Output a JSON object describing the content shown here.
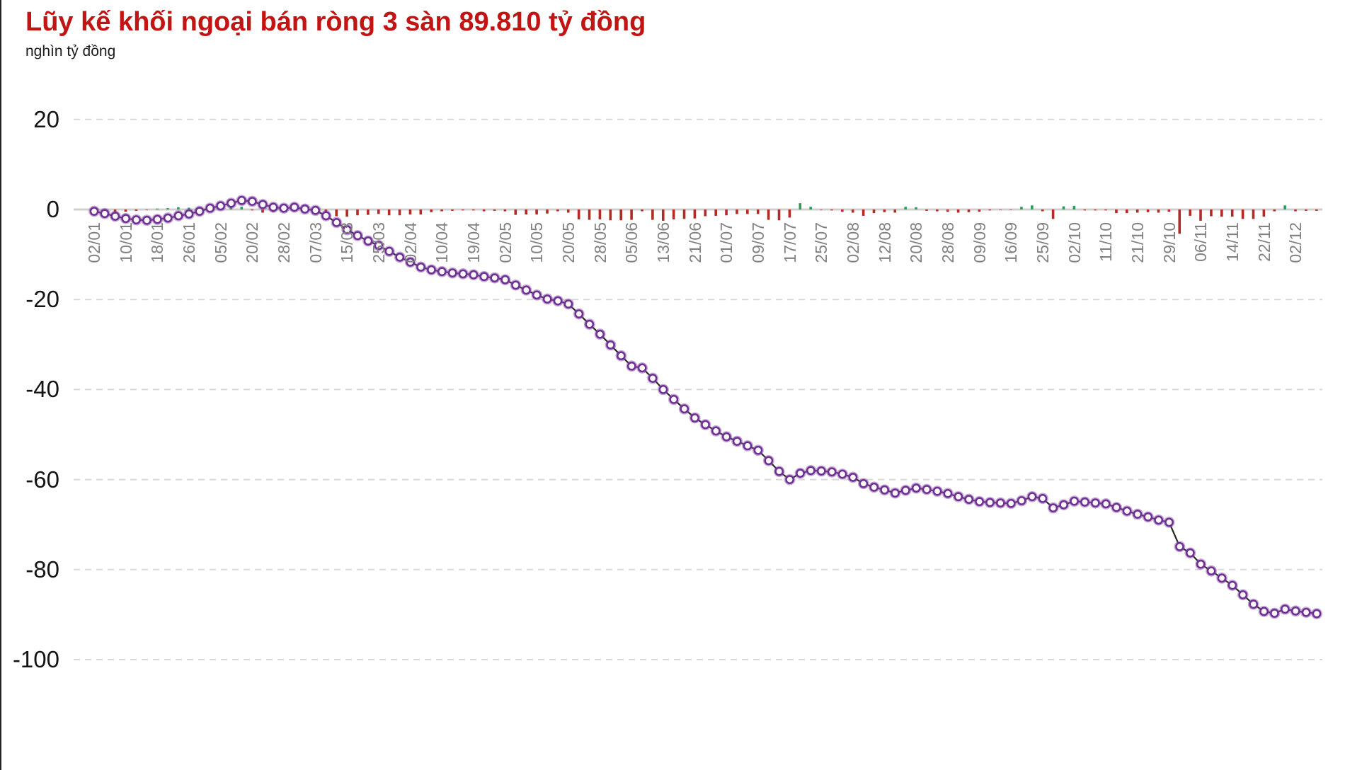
{
  "header": {
    "title": "Lũy kế khối ngoại bán ròng 3 sàn 89.810 tỷ đồng",
    "subtitle": "nghìn tỷ đồng"
  },
  "chart_data": {
    "type": "line",
    "title": "Lũy kế khối ngoại bán ròng 3 sàn 89.810 tỷ đồng",
    "ylabel": "nghìn tỷ đồng",
    "xlabel": "",
    "ylim": [
      -100,
      20
    ],
    "y_ticks": [
      20,
      0,
      -20,
      -40,
      -60,
      -80,
      -100
    ],
    "grid": "dashed horizontal, solid zero line",
    "legend_position": "none",
    "x_tick_labels": [
      "02/01",
      "10/01",
      "18/01",
      "26/01",
      "05/02",
      "20/02",
      "28/02",
      "07/03",
      "15/03",
      "25/03",
      "02/04",
      "10/04",
      "19/04",
      "02/05",
      "10/05",
      "20/05",
      "28/05",
      "05/06",
      "13/06",
      "21/06",
      "01/07",
      "09/07",
      "17/07",
      "25/07",
      "02/08",
      "12/08",
      "20/08",
      "28/08",
      "09/09",
      "16/09",
      "25/09",
      "02/10",
      "11/10",
      "21/10",
      "29/10",
      "06/11",
      "14/11",
      "22/11",
      "02/12"
    ],
    "label_every": 3,
    "series": [
      {
        "name": "cumulative-net-foreign-value",
        "type": "line-with-markers",
        "values": [
          -0.4,
          -0.9,
          -1.5,
          -2.0,
          -2.3,
          -2.4,
          -2.2,
          -1.9,
          -1.4,
          -1.0,
          -0.4,
          0.3,
          0.8,
          1.4,
          2.0,
          1.8,
          1.1,
          0.5,
          0.3,
          0.5,
          0.1,
          -0.2,
          -1.4,
          -2.9,
          -4.5,
          -5.8,
          -7.0,
          -8.0,
          -9.3,
          -10.6,
          -11.7,
          -12.8,
          -13.4,
          -13.8,
          -14.1,
          -14.3,
          -14.5,
          -14.9,
          -15.2,
          -15.6,
          -16.8,
          -17.9,
          -19.0,
          -19.9,
          -20.3,
          -21.0,
          -23.2,
          -25.5,
          -27.7,
          -30.1,
          -32.5,
          -34.8,
          -35.2,
          -37.5,
          -40.0,
          -42.2,
          -44.3,
          -46.3,
          -47.8,
          -49.2,
          -50.5,
          -51.5,
          -52.5,
          -53.5,
          -55.8,
          -58.2,
          -60.0,
          -58.6,
          -58.0,
          -58.1,
          -58.3,
          -58.8,
          -59.5,
          -60.9,
          -61.7,
          -62.3,
          -63.0,
          -62.4,
          -61.9,
          -62.2,
          -62.6,
          -63.1,
          -63.8,
          -64.4,
          -64.9,
          -65.1,
          -65.2,
          -65.3,
          -64.7,
          -63.8,
          -64.2,
          -66.3,
          -65.6,
          -64.8,
          -65.0,
          -65.2,
          -65.4,
          -66.2,
          -67.0,
          -67.7,
          -68.3,
          -69.0,
          -69.5,
          -74.9,
          -76.3,
          -78.8,
          -80.3,
          -81.9,
          -83.5,
          -85.6,
          -87.7,
          -89.3,
          -89.7,
          -88.8,
          -89.2,
          -89.5,
          -89.8
        ]
      },
      {
        "name": "daily-net-foreign-value-bars",
        "type": "bar",
        "derived": "difference of consecutive cumulative values; red when negative, green when positive"
      }
    ],
    "colors": {
      "title_red": "#c31414",
      "line": "#262626",
      "marker_ring": "#6e2e94",
      "marker_halo": "rgba(139,83,171,0.5)",
      "marker_fill": "#fcfafd",
      "bar_negative_red": "#b12b27",
      "bar_positive_green": "#28a05a",
      "gridline": "#d8d8d8",
      "zero_line": "#cfcfcf",
      "x_label_gray": "#818181",
      "y_label_black": "#141414"
    }
  }
}
